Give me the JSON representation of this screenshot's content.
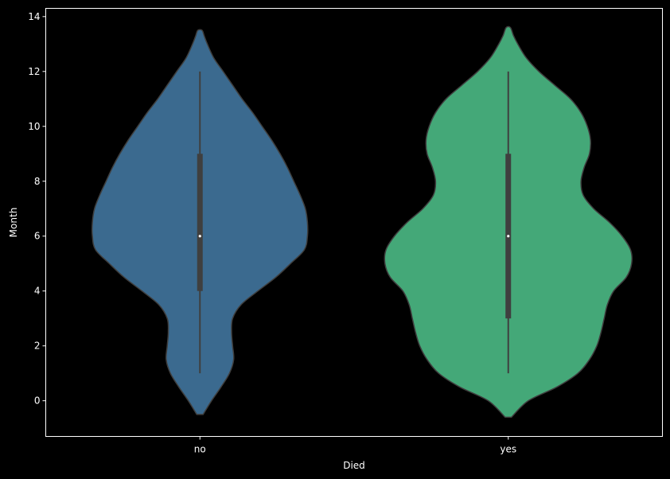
{
  "chart_data": {
    "type": "violin",
    "xlabel": "Died",
    "ylabel": "Month",
    "categories": [
      "no",
      "yes"
    ],
    "ylim": [
      -1.3,
      14.3
    ],
    "yticks": [
      0,
      2,
      4,
      6,
      8,
      10,
      12,
      14
    ],
    "grid": false,
    "background": "#000000",
    "axes_color": "#ffffff",
    "violins": [
      {
        "category": "no",
        "color": "#3b6a8f",
        "min": 1,
        "q1": 4,
        "median": 6,
        "q3": 9,
        "max": 12,
        "extent": [
          -0.5,
          13.5
        ],
        "profile": [
          [
            -0.5,
            0.15
          ],
          [
            0,
            0.55
          ],
          [
            0.5,
            1.0
          ],
          [
            1.0,
            1.4
          ],
          [
            1.5,
            1.6
          ],
          [
            2.0,
            1.55
          ],
          [
            2.5,
            1.5
          ],
          [
            3.0,
            1.55
          ],
          [
            3.5,
            1.95
          ],
          [
            4.0,
            2.75
          ],
          [
            4.5,
            3.6
          ],
          [
            5.0,
            4.3
          ],
          [
            5.5,
            4.95
          ],
          [
            6.0,
            5.1
          ],
          [
            6.5,
            5.1
          ],
          [
            7.0,
            5.0
          ],
          [
            7.5,
            4.75
          ],
          [
            8.0,
            4.45
          ],
          [
            8.5,
            4.15
          ],
          [
            9.0,
            3.8
          ],
          [
            9.5,
            3.4
          ],
          [
            10.0,
            2.95
          ],
          [
            10.5,
            2.5
          ],
          [
            11.0,
            2.0
          ],
          [
            11.5,
            1.55
          ],
          [
            12.0,
            1.1
          ],
          [
            12.5,
            0.65
          ],
          [
            13.0,
            0.35
          ],
          [
            13.3,
            0.2
          ],
          [
            13.5,
            0.1
          ]
        ]
      },
      {
        "category": "yes",
        "color": "#44a878",
        "min": 1,
        "q1": 3,
        "median": 6,
        "q3": 9,
        "max": 12,
        "extent": [
          -0.6,
          13.6
        ],
        "profile": [
          [
            -0.6,
            0.15
          ],
          [
            0,
            0.95
          ],
          [
            0.5,
            2.3
          ],
          [
            1.0,
            3.3
          ],
          [
            1.5,
            3.85
          ],
          [
            2.0,
            4.2
          ],
          [
            2.5,
            4.4
          ],
          [
            3.0,
            4.55
          ],
          [
            3.5,
            4.7
          ],
          [
            4.0,
            5.0
          ],
          [
            4.5,
            5.6
          ],
          [
            5.0,
            5.85
          ],
          [
            5.5,
            5.8
          ],
          [
            6.0,
            5.4
          ],
          [
            6.5,
            4.8
          ],
          [
            7.0,
            4.05
          ],
          [
            7.5,
            3.55
          ],
          [
            8.0,
            3.45
          ],
          [
            8.5,
            3.6
          ],
          [
            9.0,
            3.85
          ],
          [
            9.5,
            3.9
          ],
          [
            10.0,
            3.75
          ],
          [
            10.5,
            3.45
          ],
          [
            11.0,
            2.95
          ],
          [
            11.5,
            2.2
          ],
          [
            12.0,
            1.45
          ],
          [
            12.5,
            0.85
          ],
          [
            13.0,
            0.45
          ],
          [
            13.3,
            0.25
          ],
          [
            13.6,
            0.1
          ]
        ]
      }
    ]
  }
}
